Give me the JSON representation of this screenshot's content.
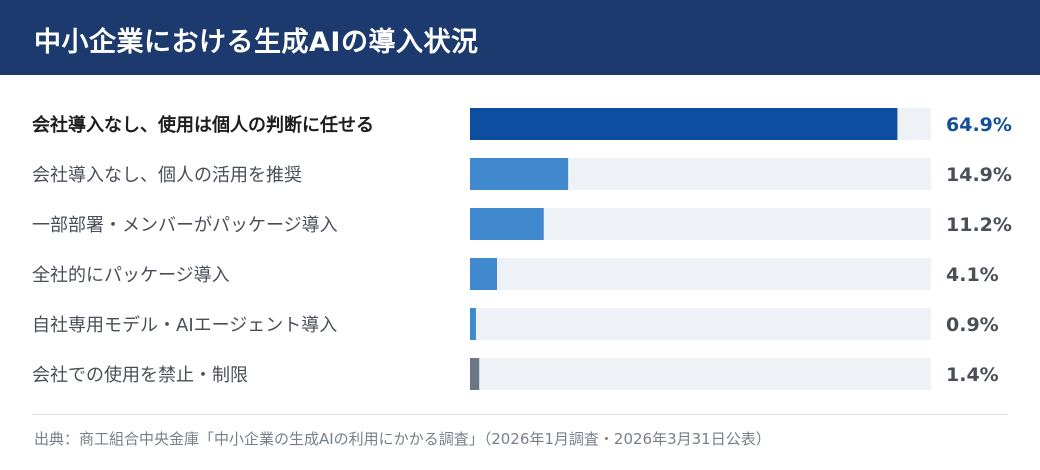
{
  "title": "中小企業における生成AIの導入状況",
  "source": "出典：商工組合中央金庫「中小企業の生成AIの利用にかかる調査」（2026年1月調査・2026年3月31日公表）",
  "colors": {
    "header_bg": "#1c3a6e",
    "highlight_bar": "#0d4ea0",
    "regular_bar": "#4189cf",
    "prohibit_bar": "#6b7785",
    "track": "#eef2f6",
    "highlight_value_text": "#134f96",
    "label_text": "#4a4f57",
    "highlight_label_text": "#1e1e1e"
  },
  "chart_data": {
    "type": "bar",
    "orientation": "horizontal",
    "xlim": [
      0,
      70
    ],
    "categories": [
      "会社導入なし、使用は個人の判断に任せる",
      "会社導入なし、個人の活用を推奨",
      "一部部署・メンバーがパッケージ導入",
      "全社的にパッケージ導入",
      "自社専用モデル・AIエージェント導入",
      "会社での使用を禁止・制限"
    ],
    "values": [
      64.9,
      14.9,
      11.2,
      4.1,
      0.9,
      1.4
    ],
    "value_labels": [
      "64.9%",
      "14.9%",
      "11.2%",
      "4.1%",
      "0.9%",
      "1.4%"
    ],
    "highlight_index": 0,
    "prohibit_index": 5
  }
}
